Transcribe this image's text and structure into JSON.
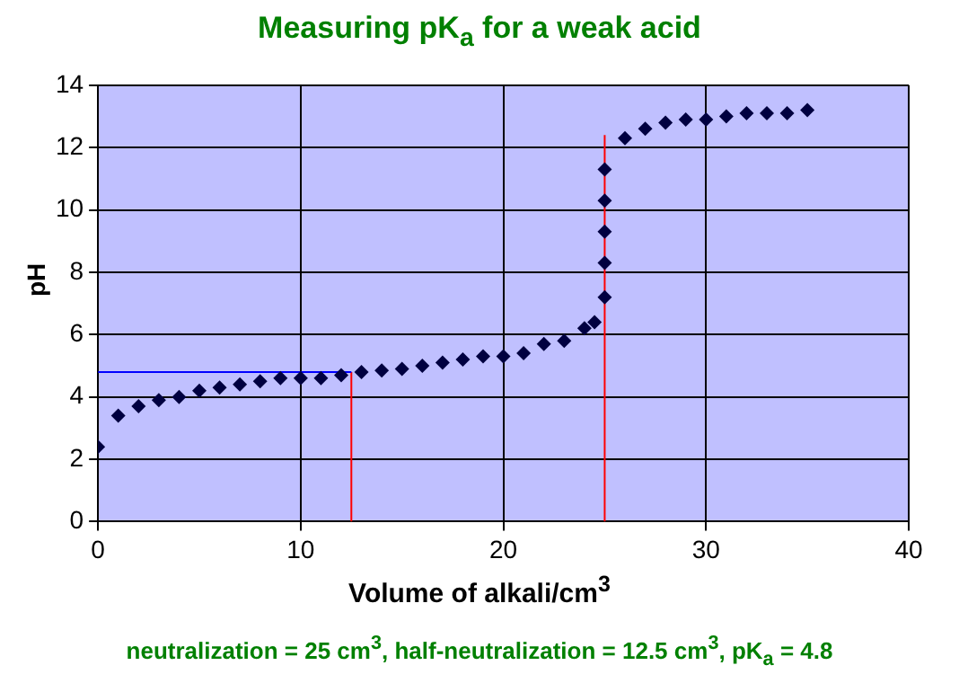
{
  "chart_data": {
    "type": "scatter",
    "title": "Measuring pK$_{a}$ for a weak acid",
    "xlabel": "Volume of alkali/cm$^{3}$",
    "ylabel": "pH",
    "annotations": [
      "neutralization = 25 cm$^{3}$, half-neutralization = 12.5 cm$^{3}$, pK$_{a}$ = 4.8"
    ],
    "xlim": [
      0,
      40
    ],
    "xticks": [
      0,
      10,
      20,
      30,
      40
    ],
    "ylim": [
      0,
      14
    ],
    "yticks": [
      0,
      2,
      4,
      6,
      8,
      10,
      12,
      14
    ],
    "grid": true,
    "marker": "diamond",
    "series": [
      {
        "color": "#000040",
        "x": [
          0,
          1,
          2,
          3,
          4,
          5,
          6,
          7,
          8,
          9,
          10,
          11,
          12,
          13,
          14,
          15,
          16,
          17,
          18,
          19,
          20,
          21,
          22,
          23,
          24,
          24.5,
          25,
          25,
          25,
          25,
          25,
          26,
          27,
          28,
          29,
          30,
          31,
          32,
          33,
          34,
          35
        ],
        "values": [
          2.4,
          3.4,
          3.7,
          3.9,
          4.0,
          4.2,
          4.3,
          4.4,
          4.5,
          4.6,
          4.6,
          4.6,
          4.7,
          4.8,
          4.85,
          4.9,
          5.0,
          5.1,
          5.2,
          5.3,
          5.3,
          5.4,
          5.7,
          5.8,
          6.2,
          6.4,
          7.2,
          8.3,
          9.3,
          10.3,
          11.3,
          12.3,
          12.6,
          12.8,
          12.9,
          12.9,
          13.0,
          13.1,
          13.1,
          13.1,
          13.2
        ]
      },
      {
        "type": "line",
        "color": "#0000ff",
        "marker": "none",
        "x": [
          0,
          12.5
        ],
        "values": [
          4.8,
          4.8
        ]
      },
      {
        "type": "line",
        "color": "#ff0000",
        "marker": "none",
        "x": [
          12.5,
          12.5
        ],
        "values": [
          0,
          4.8
        ]
      },
      {
        "type": "line",
        "color": "#ff0000",
        "marker": "none",
        "x": [
          25,
          25
        ],
        "values": [
          0,
          12.4
        ]
      }
    ]
  }
}
